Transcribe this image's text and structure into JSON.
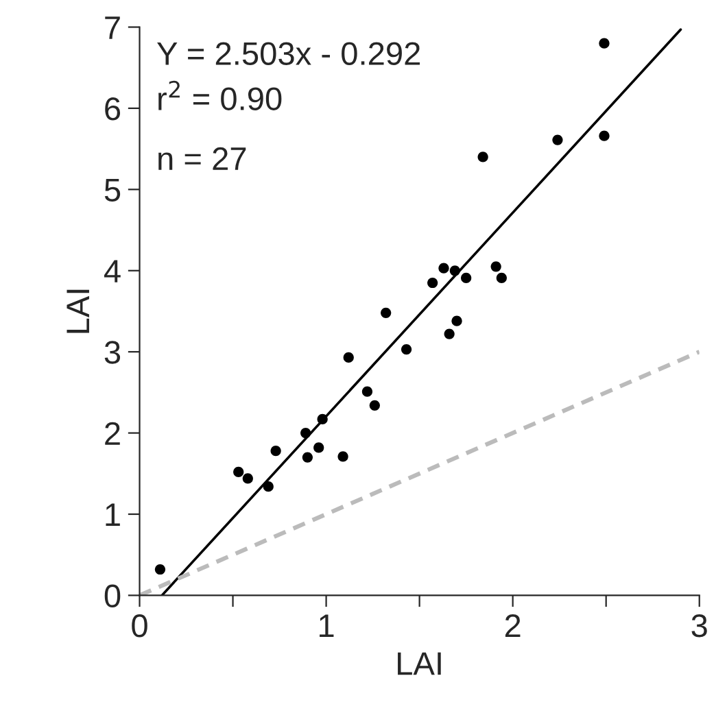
{
  "chart_data": {
    "type": "scatter",
    "xlabel": "LAI",
    "ylabel": "LAI",
    "xlim": [
      0,
      3
    ],
    "ylim": [
      0,
      7
    ],
    "xticks": [
      0,
      {
        "value": 0.5,
        "label": null
      },
      1,
      {
        "value": 1.5,
        "label": null
      },
      2,
      {
        "value": 2.5,
        "label": null
      },
      3
    ],
    "yticks": [
      0,
      1,
      2,
      3,
      4,
      5,
      6,
      7
    ],
    "grid": false,
    "legend": false,
    "marker": "circle",
    "annotations": [
      "Y = 2.503x - 0.292",
      "r$^{2}$ = 0.90",
      "n = 27"
    ],
    "series": [
      {
        "color": "#000000",
        "x": [
          0.11,
          0.53,
          0.58,
          0.69,
          0.73,
          0.89,
          0.9,
          0.96,
          0.98,
          1.09,
          1.12,
          1.22,
          1.26,
          1.32,
          1.43,
          1.66,
          1.7,
          1.57,
          2.49,
          2.24,
          2.49,
          1.84,
          1.63,
          1.69,
          1.75,
          1.91,
          1.94
        ],
        "values": [
          0.32,
          1.52,
          1.44,
          1.34,
          1.78,
          2.0,
          1.7,
          1.82,
          2.17,
          1.71,
          2.93,
          2.51,
          2.34,
          3.48,
          3.03,
          3.22,
          3.38,
          3.85,
          6.8,
          5.61,
          5.66,
          5.4,
          4.03,
          4.0,
          3.91,
          4.05,
          3.91
        ]
      },
      {
        "type": "line",
        "color": "#000000",
        "line_style": "solid",
        "marker": "none",
        "x": [
          0.12,
          2.9
        ],
        "values": [
          0.0,
          6.97
        ]
      },
      {
        "type": "line",
        "color": "#bbbbbb",
        "line_style": "dashed",
        "marker": "none",
        "x": [
          0,
          3
        ],
        "values": [
          0,
          3
        ]
      }
    ]
  }
}
